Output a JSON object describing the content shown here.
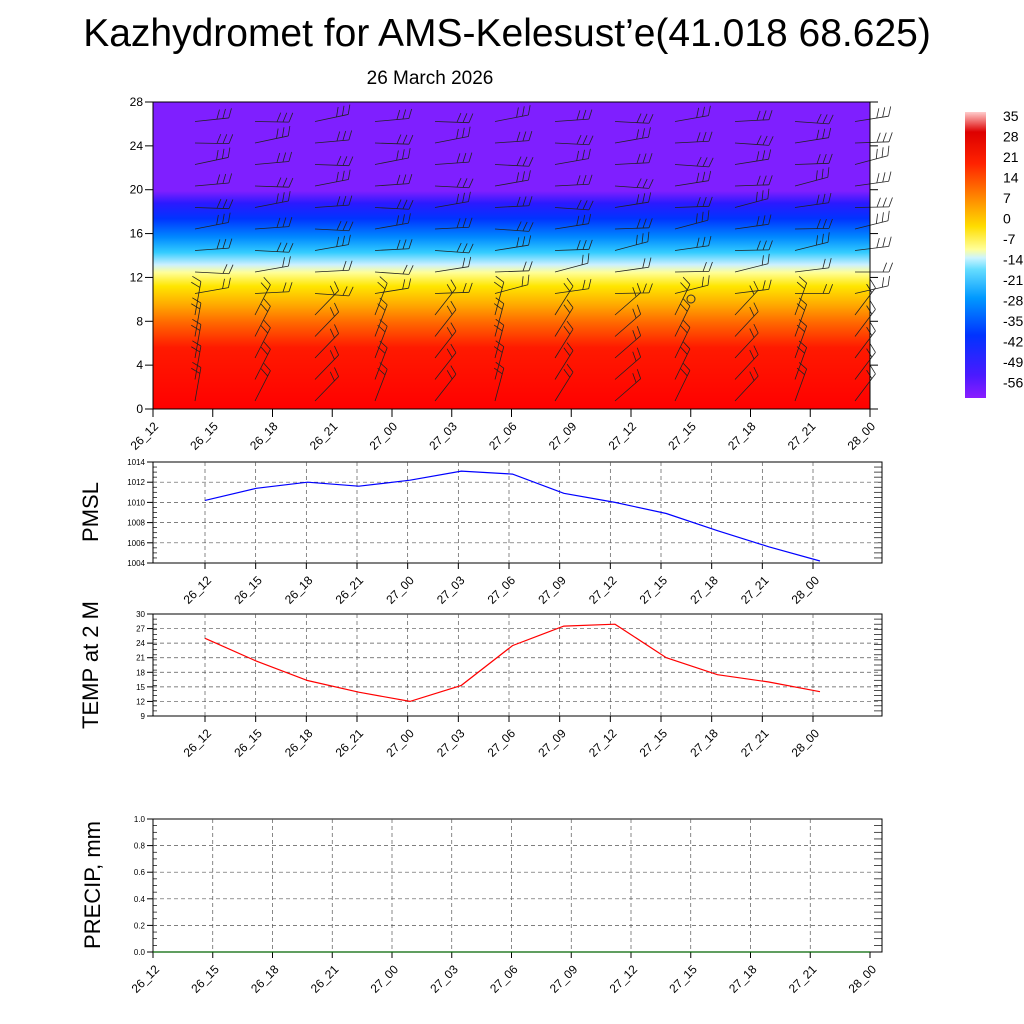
{
  "title": "Kazhydromet for AMS-Kelesust’e(41.018 68.625)",
  "subtitle": "26 March 2026",
  "chart_data": [
    {
      "type": "heatmap",
      "name": "temperature-wind cross section",
      "xlabel": "",
      "ylabel": "",
      "x_ticks": [
        "26_12",
        "26_15",
        "26_18",
        "26_21",
        "27_00",
        "27_03",
        "27_06",
        "27_09",
        "27_12",
        "27_15",
        "27_18",
        "27_21",
        "28_00"
      ],
      "y_ticks": [
        0,
        4,
        8,
        12,
        16,
        20,
        24,
        28
      ],
      "ylim": [
        0,
        28
      ],
      "colorbar": {
        "labels": [
          "35",
          "28",
          "21",
          "14",
          "7",
          "0",
          "-7",
          "-14",
          "-21",
          "-28",
          "-35",
          "-42",
          "-49",
          "-56"
        ],
        "colors": [
          "#ff0000",
          "#ff3300",
          "#ff6600",
          "#ff9900",
          "#ffcc00",
          "#ffee33",
          "#ffff99",
          "#ccf0ff",
          "#33ccff",
          "#00aaff",
          "#0077ff",
          "#0044ff",
          "#1a1aff",
          "#7f1fff"
        ]
      },
      "layers": [
        {
          "z_from": 0,
          "z_to": 6,
          "value": 28
        },
        {
          "z_from": 6,
          "z_to": 9,
          "value": 14
        },
        {
          "z_from": 9,
          "z_to": 12.5,
          "value": 3
        },
        {
          "z_from": 12.5,
          "z_to": 15,
          "value": -20
        },
        {
          "z_from": 15,
          "z_to": 17,
          "value": -35
        },
        {
          "z_from": 17,
          "z_to": 19.5,
          "value": -48
        },
        {
          "z_from": 19.5,
          "z_to": 28,
          "value": -56
        }
      ]
    },
    {
      "type": "line",
      "ylabel": "PMSL",
      "categories": [
        "26_12",
        "26_15",
        "26_18",
        "26_21",
        "27_00",
        "27_03",
        "27_06",
        "27_09",
        "27_12",
        "27_15",
        "27_18",
        "27_21",
        "28_00"
      ],
      "ylim": [
        1004,
        1014
      ],
      "y_ticks": [
        1004,
        1006,
        1008,
        1010,
        1012,
        1014
      ],
      "series": [
        {
          "values": [
            1010.2,
            1011.4,
            1012.0,
            1011.6,
            1012.2,
            1013.1,
            1012.8,
            1010.9,
            1010.0,
            1008.9,
            1007.2,
            1005.6,
            1004.2
          ],
          "color": "#0000ff"
        }
      ]
    },
    {
      "type": "line",
      "ylabel": "TEMP at 2 M",
      "categories": [
        "26_12",
        "26_15",
        "26_18",
        "26_21",
        "27_00",
        "27_03",
        "27_06",
        "27_09",
        "27_12",
        "27_15",
        "27_18",
        "27_21",
        "28_00"
      ],
      "ylim": [
        9,
        30
      ],
      "y_ticks": [
        9,
        12,
        15,
        18,
        21,
        24,
        27,
        30
      ],
      "series": [
        {
          "values": [
            25.0,
            20.3,
            16.3,
            13.9,
            12.0,
            15.3,
            23.5,
            27.5,
            27.9,
            21.0,
            17.5,
            16.0,
            14.0
          ],
          "color": "#ff0000"
        }
      ]
    },
    {
      "type": "line",
      "ylabel": "PRECIP, mm",
      "categories": [
        "26_12",
        "26_15",
        "26_18",
        "26_21",
        "27_00",
        "27_03",
        "27_06",
        "27_09",
        "27_12",
        "27_15",
        "27_18",
        "27_21",
        "28_00"
      ],
      "ylim": [
        0,
        1
      ],
      "y_ticks": [
        "0.0",
        "0.2",
        "0.4",
        "0.6",
        "0.8",
        "1.0"
      ],
      "series": [
        {
          "values": [
            0,
            0,
            0,
            0,
            0,
            0,
            0,
            0,
            0,
            0,
            0,
            0,
            0
          ],
          "color": "#006400"
        }
      ]
    }
  ]
}
